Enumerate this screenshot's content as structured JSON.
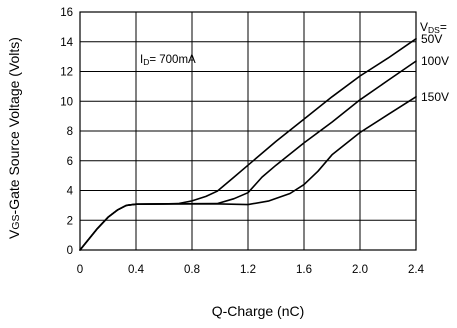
{
  "chart_data": {
    "type": "line",
    "xlabel": "Q-Charge (nC)",
    "ylabel": {
      "prefix": "V",
      "sub": "GS",
      "rest": "-Gate Source Voltage (Volts)"
    },
    "xlim": [
      0,
      2.4
    ],
    "ylim": [
      0,
      16
    ],
    "x_ticks": [
      "0",
      "0.4",
      "0.8",
      "1.2",
      "1.6",
      "2.0",
      "2.4"
    ],
    "y_ticks": [
      "0",
      "2",
      "4",
      "6",
      "8",
      "10",
      "12",
      "14",
      "16"
    ],
    "grid": true,
    "annotation": {
      "prefix": "I",
      "sub": "D",
      "rest": "= 700mA"
    },
    "legend_header": {
      "prefix": "V",
      "sub": "DS",
      "rest": "="
    },
    "series": [
      {
        "name": "50V",
        "points": [
          [
            0,
            0
          ],
          [
            0.06,
            0.7
          ],
          [
            0.12,
            1.4
          ],
          [
            0.2,
            2.2
          ],
          [
            0.27,
            2.7
          ],
          [
            0.33,
            3.0
          ],
          [
            0.4,
            3.08
          ],
          [
            0.6,
            3.1
          ],
          [
            0.7,
            3.12
          ],
          [
            0.8,
            3.3
          ],
          [
            0.9,
            3.6
          ],
          [
            0.98,
            3.95
          ],
          [
            1.1,
            4.9
          ],
          [
            1.2,
            5.7
          ],
          [
            1.4,
            7.3
          ],
          [
            1.6,
            8.8
          ],
          [
            1.8,
            10.3
          ],
          [
            2.0,
            11.7
          ],
          [
            2.2,
            12.9
          ],
          [
            2.4,
            14.2
          ]
        ]
      },
      {
        "name": "100V",
        "points": [
          [
            0,
            0
          ],
          [
            0.06,
            0.7
          ],
          [
            0.12,
            1.4
          ],
          [
            0.2,
            2.2
          ],
          [
            0.27,
            2.7
          ],
          [
            0.33,
            3.0
          ],
          [
            0.4,
            3.08
          ],
          [
            0.6,
            3.1
          ],
          [
            0.8,
            3.11
          ],
          [
            0.98,
            3.12
          ],
          [
            1.1,
            3.45
          ],
          [
            1.2,
            3.85
          ],
          [
            1.3,
            4.9
          ],
          [
            1.4,
            5.7
          ],
          [
            1.6,
            7.2
          ],
          [
            1.8,
            8.6
          ],
          [
            2.0,
            10.1
          ],
          [
            2.2,
            11.4
          ],
          [
            2.4,
            12.7
          ]
        ]
      },
      {
        "name": "150V",
        "points": [
          [
            0,
            0
          ],
          [
            0.06,
            0.7
          ],
          [
            0.12,
            1.4
          ],
          [
            0.2,
            2.2
          ],
          [
            0.27,
            2.7
          ],
          [
            0.33,
            3.0
          ],
          [
            0.4,
            3.08
          ],
          [
            0.6,
            3.1
          ],
          [
            0.8,
            3.1
          ],
          [
            1.0,
            3.1
          ],
          [
            1.2,
            3.05
          ],
          [
            1.35,
            3.3
          ],
          [
            1.5,
            3.8
          ],
          [
            1.6,
            4.4
          ],
          [
            1.7,
            5.3
          ],
          [
            1.8,
            6.4
          ],
          [
            2.0,
            7.9
          ],
          [
            2.2,
            9.1
          ],
          [
            2.4,
            10.3
          ]
        ]
      }
    ]
  }
}
